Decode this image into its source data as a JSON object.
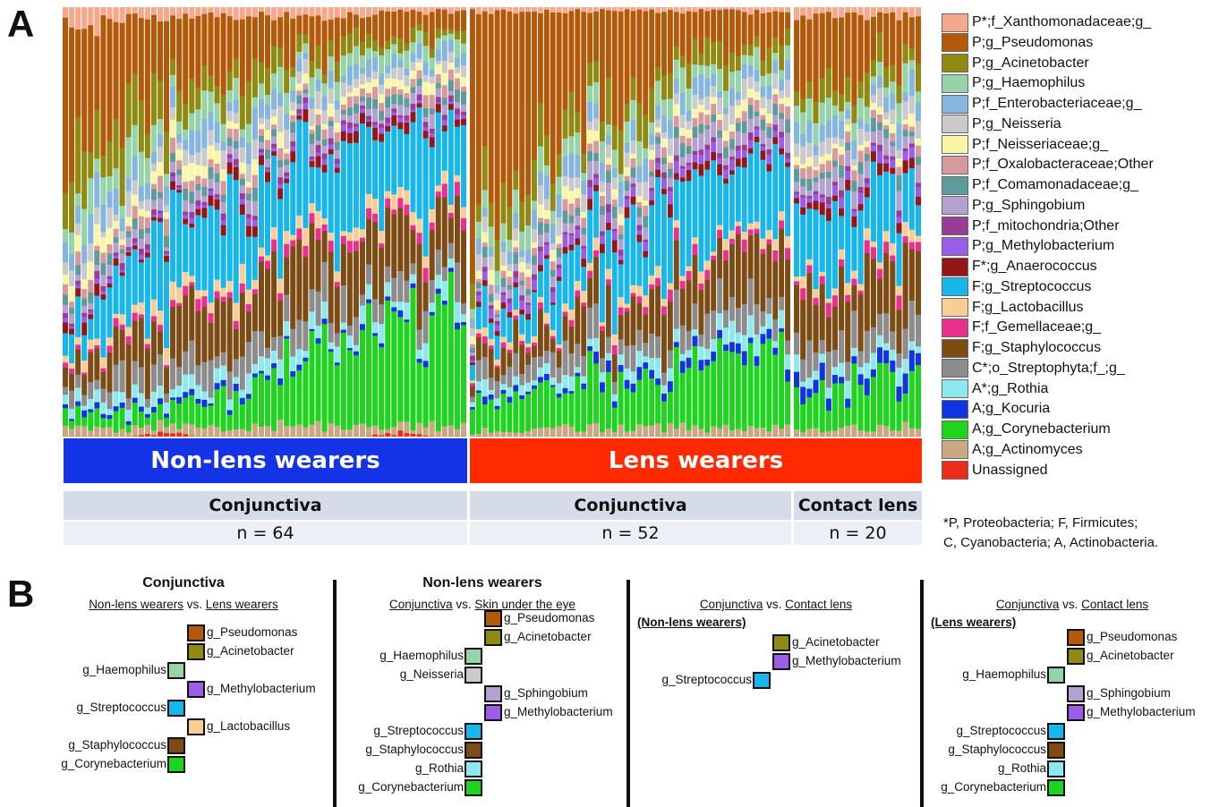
{
  "panel_letters": {
    "a": "A",
    "b": "B"
  },
  "colors": {
    "P*;f_Xanthomonadaceae;g_": "#f4a98c",
    "P;g_Pseudomonas": "#b25a0a",
    "P;g_Acinetobacter": "#8e8a12",
    "P;g_Haemophilus": "#96d3a8",
    "P;f_Enterobacteriaceae;g_": "#86b6e0",
    "P;g_Neisseria": "#cacaca",
    "P;f_Neisseriaceae;g_": "#fbf5a6",
    "P;f_Oxalobacteraceae;Other": "#d79a9c",
    "P;f_Comamonadaceae;g_": "#5e9b9b",
    "P;g_Sphingobium": "#b3a2cf",
    "P;f_mitochondria;Other": "#983c96",
    "P;g_Methylobacterium": "#9b5ce6",
    "F*;g_Anaerococcus": "#931717",
    "F;g_Streptococcus": "#18b6ea",
    "F;g_Lactobacillus": "#fbcd96",
    "F;f_Gemellaceae;g_": "#ea2f8d",
    "F;g_Staphylococcus": "#7d4c14",
    "C*;o_Streptophyta;f_;g_": "#8c8c8c",
    "A*;g_Rothia": "#8ce9ee",
    "A;g_Kocuria": "#0f35e0",
    "A;g_Corynebacterium": "#1fd41f",
    "A;g_Actinomyces": "#c9a883",
    "Unassigned": "#ee2b1a"
  },
  "chart_data": {
    "type": "bar",
    "subtype": "stacked-relative-abundance",
    "legend_placement": "right",
    "series": [
      {
        "name": "P*;f_Xanthomonadaceae;g_"
      },
      {
        "name": "P;g_Pseudomonas"
      },
      {
        "name": "P;g_Acinetobacter"
      },
      {
        "name": "P;g_Haemophilus"
      },
      {
        "name": "P;f_Enterobacteriaceae;g_"
      },
      {
        "name": "P;g_Neisseria"
      },
      {
        "name": "P;f_Neisseriaceae;g_"
      },
      {
        "name": "P;f_Oxalobacteraceae;Other"
      },
      {
        "name": "P;f_Comamonadaceae;g_"
      },
      {
        "name": "P;g_Sphingobium"
      },
      {
        "name": "P;f_mitochondria;Other"
      },
      {
        "name": "P;g_Methylobacterium"
      },
      {
        "name": "F*;g_Anaerococcus"
      },
      {
        "name": "F;g_Streptococcus"
      },
      {
        "name": "F;g_Lactobacillus"
      },
      {
        "name": "F;f_Gemellaceae;g_"
      },
      {
        "name": "F;g_Staphylococcus"
      },
      {
        "name": "C*;o_Streptophyta;f_;g_"
      },
      {
        "name": "A*;g_Rothia"
      },
      {
        "name": "A;g_Kocuria"
      },
      {
        "name": "A;g_Corynebacterium"
      },
      {
        "name": "A;g_Actinomyces"
      },
      {
        "name": "Unassigned"
      }
    ],
    "groups": [
      {
        "label": "Non-lens wearers",
        "color": "#1533e6",
        "sites": [
          {
            "label": "Conjunctiva",
            "n_label": "n = 64",
            "n": 64
          }
        ]
      },
      {
        "label": "Lens wearers",
        "color": "#ff2a00",
        "sites": [
          {
            "label": "Conjunctiva",
            "n_label": "n = 52",
            "n": 52
          },
          {
            "label": "Contact lens",
            "n_label": "n = 20",
            "n": 20
          }
        ]
      }
    ],
    "samples": {
      "nonlens_conjunctiva": [
        [
          6,
          30,
          12,
          5,
          4,
          3,
          3,
          2,
          2,
          2,
          1,
          1,
          2,
          8,
          2,
          1,
          4,
          4,
          2,
          1,
          3,
          2,
          0
        ],
        [
          4,
          26,
          10,
          6,
          5,
          3,
          3,
          2,
          2,
          2,
          1,
          1,
          2,
          12,
          2,
          1,
          6,
          4,
          2,
          1,
          3,
          2,
          0
        ],
        [
          3,
          22,
          9,
          6,
          5,
          4,
          2,
          2,
          2,
          2,
          1,
          1,
          1,
          14,
          2,
          2,
          8,
          5,
          3,
          1,
          4,
          2,
          0
        ],
        [
          3,
          20,
          8,
          5,
          4,
          3,
          3,
          3,
          2,
          2,
          1,
          1,
          1,
          16,
          3,
          1,
          10,
          5,
          3,
          1,
          4,
          2,
          1
        ],
        [
          2,
          18,
          6,
          5,
          4,
          3,
          3,
          2,
          2,
          2,
          1,
          1,
          2,
          16,
          2,
          2,
          12,
          6,
          3,
          1,
          5,
          2,
          0
        ],
        [
          2,
          15,
          6,
          4,
          4,
          3,
          2,
          2,
          2,
          2,
          1,
          1,
          2,
          18,
          3,
          1,
          12,
          6,
          3,
          1,
          8,
          2,
          0
        ],
        [
          2,
          12,
          5,
          4,
          4,
          3,
          2,
          2,
          2,
          2,
          1,
          1,
          2,
          18,
          3,
          2,
          14,
          6,
          3,
          1,
          11,
          2,
          0
        ],
        [
          2,
          10,
          4,
          4,
          3,
          3,
          2,
          2,
          2,
          2,
          1,
          1,
          2,
          18,
          3,
          2,
          14,
          6,
          3,
          1,
          15,
          2,
          0
        ],
        [
          2,
          8,
          4,
          4,
          3,
          3,
          2,
          2,
          2,
          2,
          1,
          1,
          2,
          18,
          2,
          2,
          14,
          6,
          3,
          1,
          18,
          2,
          0
        ],
        [
          2,
          7,
          3,
          3,
          3,
          2,
          2,
          2,
          2,
          2,
          1,
          1,
          2,
          18,
          3,
          2,
          14,
          5,
          3,
          1,
          21,
          2,
          0
        ],
        [
          1,
          6,
          3,
          3,
          3,
          2,
          2,
          2,
          2,
          2,
          1,
          1,
          2,
          16,
          3,
          2,
          14,
          5,
          3,
          1,
          24,
          2,
          1
        ],
        [
          1,
          5,
          3,
          3,
          3,
          2,
          2,
          2,
          2,
          2,
          1,
          1,
          2,
          16,
          2,
          2,
          12,
          5,
          3,
          1,
          28,
          2,
          0
        ],
        [
          1,
          5,
          2,
          3,
          3,
          2,
          2,
          2,
          2,
          2,
          1,
          1,
          2,
          16,
          2,
          2,
          12,
          5,
          3,
          1,
          30,
          2,
          0
        ]
      ],
      "lens_conjunctiva": [
        [
          1,
          58,
          5,
          2,
          2,
          2,
          2,
          1,
          1,
          1,
          1,
          1,
          1,
          6,
          1,
          1,
          4,
          3,
          2,
          1,
          6,
          1,
          0
        ],
        [
          1,
          40,
          8,
          4,
          3,
          3,
          2,
          2,
          2,
          2,
          1,
          2,
          1,
          10,
          2,
          1,
          6,
          4,
          2,
          1,
          8,
          1,
          0
        ],
        [
          1,
          28,
          8,
          4,
          4,
          3,
          2,
          2,
          2,
          2,
          1,
          2,
          1,
          12,
          2,
          1,
          8,
          5,
          3,
          1,
          10,
          2,
          0
        ],
        [
          1,
          20,
          7,
          4,
          4,
          3,
          2,
          2,
          2,
          3,
          1,
          2,
          2,
          14,
          2,
          2,
          10,
          5,
          3,
          2,
          11,
          2,
          0
        ],
        [
          1,
          15,
          6,
          4,
          4,
          3,
          2,
          2,
          2,
          3,
          1,
          2,
          2,
          16,
          2,
          2,
          10,
          5,
          3,
          2,
          13,
          2,
          0
        ],
        [
          1,
          11,
          5,
          4,
          4,
          3,
          2,
          2,
          2,
          3,
          1,
          2,
          2,
          16,
          2,
          2,
          11,
          6,
          3,
          2,
          15,
          2,
          0
        ],
        [
          1,
          8,
          5,
          4,
          3,
          3,
          2,
          2,
          2,
          3,
          1,
          2,
          2,
          16,
          2,
          2,
          12,
          6,
          3,
          2,
          17,
          2,
          0
        ],
        [
          1,
          6,
          4,
          4,
          3,
          3,
          2,
          2,
          2,
          3,
          1,
          2,
          2,
          16,
          2,
          2,
          12,
          6,
          4,
          2,
          18,
          2,
          0
        ]
      ],
      "lens_contact_lens": [
        [
          2,
          20,
          6,
          4,
          4,
          3,
          2,
          2,
          2,
          2,
          1,
          2,
          2,
          14,
          2,
          2,
          10,
          6,
          3,
          3,
          8,
          2,
          0
        ],
        [
          2,
          15,
          6,
          4,
          4,
          3,
          2,
          2,
          2,
          3,
          1,
          2,
          2,
          15,
          2,
          2,
          11,
          6,
          3,
          3,
          9,
          2,
          0
        ],
        [
          2,
          11,
          5,
          4,
          4,
          3,
          2,
          2,
          2,
          3,
          1,
          2,
          2,
          16,
          2,
          2,
          12,
          6,
          3,
          3,
          10,
          2,
          0
        ],
        [
          2,
          8,
          5,
          4,
          4,
          3,
          2,
          2,
          2,
          3,
          1,
          2,
          2,
          16,
          2,
          2,
          12,
          6,
          3,
          3,
          11,
          2,
          0
        ]
      ]
    }
  },
  "group_labels": [
    "Non-lens wearers",
    "Lens wearers"
  ],
  "site_labels": [
    "Conjunctiva",
    "Conjunctiva",
    "Contact lens"
  ],
  "n_labels": [
    "n = 64",
    "n = 52",
    "n = 20"
  ],
  "footnote": [
    "*P, Proteobacteria; F, Firmicutes;",
    "C, Cyanobacteria; A, Actinobacteria."
  ],
  "panel_b": [
    {
      "title": "Conjunctiva",
      "subtitle": {
        "left": "Non-lens wearers",
        "mid": " vs. ",
        "right": "Lens wearers"
      },
      "entries": [
        {
          "label": "g_Pseudomonas",
          "color_key": "P;g_Pseudomonas",
          "side": "right"
        },
        {
          "label": "g_Acinetobacter",
          "color_key": "P;g_Acinetobacter",
          "side": "right"
        },
        {
          "label": "g_Haemophilus",
          "color_key": "P;g_Haemophilus",
          "side": "left"
        },
        {
          "label": "g_Methylobacterium",
          "color_key": "P;g_Methylobacterium",
          "side": "right"
        },
        {
          "label": "g_Streptococcus",
          "color_key": "F;g_Streptococcus",
          "side": "left"
        },
        {
          "label": "g_Lactobacillus",
          "color_key": "F;g_Lactobacillus",
          "side": "right"
        },
        {
          "label": "g_Staphylococcus",
          "color_key": "F;g_Staphylococcus",
          "side": "left"
        },
        {
          "label": "g_Corynebacterium",
          "color_key": "A;g_Corynebacterium",
          "side": "left"
        }
      ]
    },
    {
      "title": "Non-lens wearers",
      "subtitle": {
        "left": "Conjunctiva",
        "mid": " vs. ",
        "right": "Skin under the eye"
      },
      "entries": [
        {
          "label": "g_Pseudomonas",
          "color_key": "P;g_Pseudomonas",
          "side": "right"
        },
        {
          "label": "g_Acinetobacter",
          "color_key": "P;g_Acinetobacter",
          "side": "right"
        },
        {
          "label": "g_Haemophilus",
          "color_key": "P;g_Haemophilus",
          "side": "left"
        },
        {
          "label": "g_Neisseria",
          "color_key": "P;g_Neisseria",
          "side": "left"
        },
        {
          "label": "g_Sphingobium",
          "color_key": "P;g_Sphingobium",
          "side": "right"
        },
        {
          "label": "g_Methylobacterium",
          "color_key": "P;g_Methylobacterium",
          "side": "right"
        },
        {
          "label": "g_Streptococcus",
          "color_key": "F;g_Streptococcus",
          "side": "left"
        },
        {
          "label": "g_Staphylococcus",
          "color_key": "F;g_Staphylococcus",
          "side": "left"
        },
        {
          "label": "g_Rothia",
          "color_key": "A*;g_Rothia",
          "side": "left"
        },
        {
          "label": "g_Corynebacterium",
          "color_key": "A;g_Corynebacterium",
          "side": "left"
        }
      ]
    },
    {
      "title": "",
      "subtitle": {
        "left": "Conjunctiva",
        "mid": " vs. ",
        "right": "Contact lens"
      },
      "subtitle2": "(Non-lens wearers)",
      "entries": [
        {
          "label": "g_Acinetobacter",
          "color_key": "P;g_Acinetobacter",
          "side": "right"
        },
        {
          "label": "g_Methylobacterium",
          "color_key": "P;g_Methylobacterium",
          "side": "right"
        },
        {
          "label": "g_Streptococcus",
          "color_key": "F;g_Streptococcus",
          "side": "left"
        }
      ]
    },
    {
      "title": "",
      "subtitle": {
        "left": "Conjunctiva",
        "mid": " vs. ",
        "right": "Contact lens"
      },
      "subtitle2": "(Lens wearers)",
      "entries": [
        {
          "label": "g_Pseudomonas",
          "color_key": "P;g_Pseudomonas",
          "side": "right"
        },
        {
          "label": "g_Acinetobacter",
          "color_key": "P;g_Acinetobacter",
          "side": "right"
        },
        {
          "label": "g_Haemophilus",
          "color_key": "P;g_Haemophilus",
          "side": "left"
        },
        {
          "label": "g_Sphingobium",
          "color_key": "P;g_Sphingobium",
          "side": "right"
        },
        {
          "label": "g_Methylobacterium",
          "color_key": "P;g_Methylobacterium",
          "side": "right"
        },
        {
          "label": "g_Streptococcus",
          "color_key": "F;g_Streptococcus",
          "side": "left"
        },
        {
          "label": "g_Staphylococcus",
          "color_key": "F;g_Staphylococcus",
          "side": "left"
        },
        {
          "label": "g_Rothia",
          "color_key": "A*;g_Rothia",
          "side": "left"
        },
        {
          "label": "g_Corynebacterium",
          "color_key": "A;g_Corynebacterium",
          "side": "left"
        }
      ]
    }
  ]
}
